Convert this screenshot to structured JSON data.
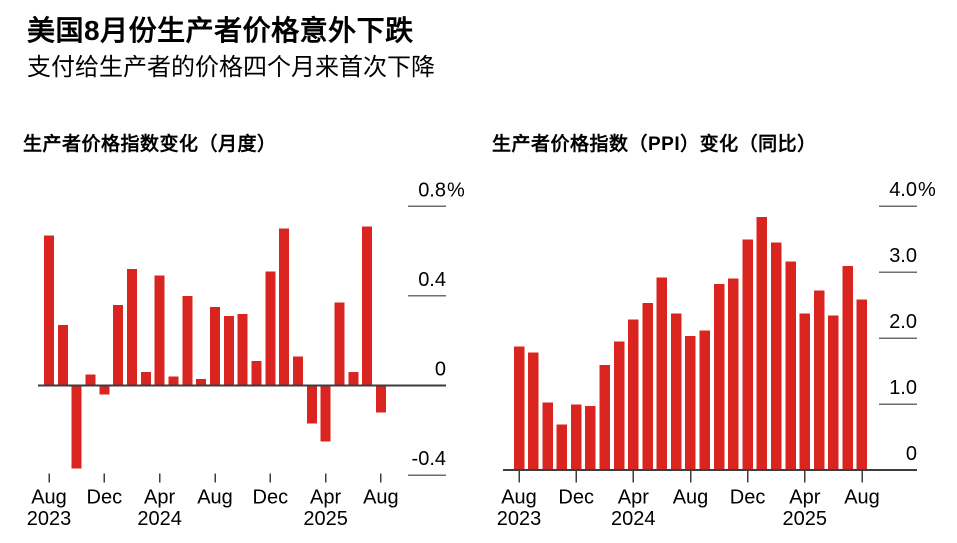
{
  "header": {
    "title": "美国8月份生产者价格意外下跌",
    "subtitle": "支付给生产者的价格四个月来首次下降"
  },
  "colors": {
    "bar": "#d9241f",
    "axis": "#3d3d3d",
    "value_tick": "#6e6e6e",
    "text": "#000000",
    "background": "#ffffff"
  },
  "chart_data": [
    {
      "type": "bar",
      "name": "ppi-monthly-chart",
      "title": "生产者价格指数变化（月度）",
      "unit": "%",
      "grid": "none",
      "legend": "none",
      "ylim": [
        -0.45,
        0.95
      ],
      "categories": [
        "Aug 2023",
        "Sep 2023",
        "Oct 2023",
        "Nov 2023",
        "Dec 2023",
        "Jan 2024",
        "Feb 2024",
        "Mar 2024",
        "Apr 2024",
        "May 2024",
        "Jun 2024",
        "Jul 2024",
        "Aug 2024",
        "Sep 2024",
        "Oct 2024",
        "Nov 2024",
        "Dec 2024",
        "Jan 2025",
        "Feb 2025",
        "Mar 2025",
        "Apr 2025",
        "May 2025",
        "Jun 2025",
        "Jul 2025",
        "Aug 2025"
      ],
      "values": [
        0.67,
        0.27,
        -0.37,
        0.05,
        -0.04,
        0.36,
        0.52,
        0.06,
        0.49,
        0.04,
        0.4,
        0.03,
        0.35,
        0.31,
        0.32,
        0.11,
        0.51,
        0.7,
        0.13,
        -0.17,
        -0.25,
        0.37,
        0.06,
        0.71,
        -0.12
      ],
      "x_tick_indices": [
        0,
        4,
        8,
        12,
        16,
        20,
        24
      ],
      "x_tick_labels": [
        "Aug",
        "Dec",
        "Apr",
        "Aug",
        "Dec",
        "Apr",
        "Aug"
      ],
      "x_year_labels": [
        {
          "index": 0,
          "label": "2023"
        },
        {
          "index": 8,
          "label": "2024"
        },
        {
          "index": 20,
          "label": "2025"
        }
      ],
      "y_ticks": [
        {
          "value": 0.8,
          "label": "0.8%"
        },
        {
          "value": 0.4,
          "label": "0.4"
        },
        {
          "value": 0,
          "label": "0"
        },
        {
          "value": -0.4,
          "label": "-0.4"
        }
      ]
    },
    {
      "type": "bar",
      "name": "ppi-yoy-chart",
      "title": "生产者价格指数（PPI）变化（同比）",
      "unit": "%",
      "grid": "none",
      "legend": "none",
      "ylim": [
        0,
        4.6
      ],
      "categories": [
        "Aug 2023",
        "Sep 2023",
        "Oct 2023",
        "Nov 2023",
        "Dec 2023",
        "Jan 2024",
        "Feb 2024",
        "Mar 2024",
        "Apr 2024",
        "May 2024",
        "Jun 2024",
        "Jul 2024",
        "Aug 2024",
        "Sep 2024",
        "Oct 2024",
        "Nov 2024",
        "Dec 2024",
        "Jan 2025",
        "Feb 2025",
        "Mar 2025",
        "Apr 2025",
        "May 2025",
        "Jun 2025",
        "Jul 2025",
        "Aug 2025"
      ],
      "values": [
        1.87,
        1.78,
        1.02,
        0.69,
        0.99,
        0.97,
        1.59,
        1.95,
        2.28,
        2.53,
        2.92,
        2.37,
        2.03,
        2.11,
        2.82,
        2.9,
        3.49,
        3.83,
        3.45,
        3.16,
        2.37,
        2.72,
        2.34,
        3.09,
        2.58
      ],
      "x_tick_indices": [
        0,
        4,
        8,
        12,
        16,
        20,
        24
      ],
      "x_tick_labels": [
        "Aug",
        "Dec",
        "Apr",
        "Aug",
        "Dec",
        "Apr",
        "Aug"
      ],
      "x_year_labels": [
        {
          "index": 0,
          "label": "2023"
        },
        {
          "index": 8,
          "label": "2024"
        },
        {
          "index": 20,
          "label": "2025"
        }
      ],
      "y_ticks": [
        {
          "value": 4.0,
          "label": "4.0%"
        },
        {
          "value": 3.0,
          "label": "3.0"
        },
        {
          "value": 2.0,
          "label": "2.0"
        },
        {
          "value": 1.0,
          "label": "1.0"
        },
        {
          "value": 0,
          "label": "0"
        }
      ]
    }
  ]
}
